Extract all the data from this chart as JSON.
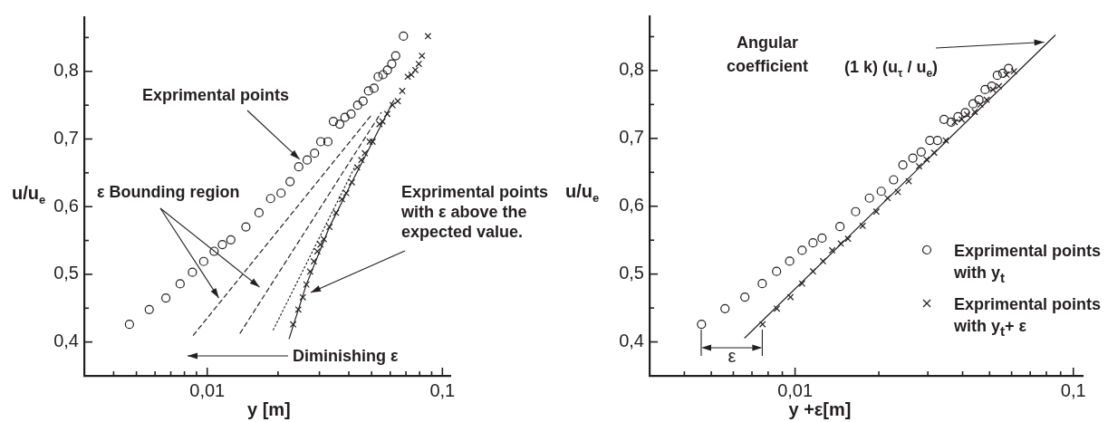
{
  "chart_data": [
    {
      "type": "scatter",
      "xlabel": "y [m]",
      "ylabel": "u/u$_{e}$",
      "log": "x",
      "legend": false,
      "xlim": [
        0.003,
        0.108
      ],
      "ylim": [
        0.35,
        0.88
      ],
      "xticks": [
        {
          "value": 0.004,
          "label": null
        },
        {
          "value": 0.005,
          "label": null
        },
        {
          "value": 0.006,
          "label": null
        },
        {
          "value": 0.007,
          "label": null
        },
        {
          "value": 0.008,
          "label": null
        },
        {
          "value": 0.009,
          "label": null
        },
        {
          "value": 0.01,
          "label": "0,01"
        },
        {
          "value": 0.02,
          "label": null
        },
        {
          "value": 0.03,
          "label": null
        },
        {
          "value": 0.04,
          "label": null
        },
        {
          "value": 0.05,
          "label": null
        },
        {
          "value": 0.06,
          "label": null
        },
        {
          "value": 0.07,
          "label": null
        },
        {
          "value": 0.08,
          "label": null
        },
        {
          "value": 0.09,
          "label": null
        },
        {
          "value": 0.1,
          "label": "0,1"
        }
      ],
      "yticks": [
        {
          "value": 0.4,
          "label": "0,4"
        },
        {
          "value": 0.45,
          "label": null
        },
        {
          "value": 0.5,
          "label": "0,5"
        },
        {
          "value": 0.55,
          "label": null
        },
        {
          "value": 0.6,
          "label": "0,6"
        },
        {
          "value": 0.65,
          "label": null
        },
        {
          "value": 0.7,
          "label": "0,7"
        },
        {
          "value": 0.75,
          "label": null
        },
        {
          "value": 0.8,
          "label": "0,8"
        },
        {
          "value": 0.85,
          "label": null
        }
      ],
      "series": [
        {
          "type": "scatter",
          "marker": "circle",
          "color": "#231f20",
          "x": [
            0.00467,
            0.00567,
            0.00667,
            0.00767,
            0.00865,
            0.00966,
            0.0107,
            0.0116,
            0.0126,
            0.0146,
            0.0166,
            0.0186,
            0.0206,
            0.0225,
            0.0245,
            0.0266,
            0.0286,
            0.0304,
            0.0326,
            0.0344,
            0.0366,
            0.0385,
            0.0409,
            0.0436,
            0.046,
            0.0485,
            0.0512,
            0.0533,
            0.0559,
            0.0584,
            0.0609,
            0.0633,
            0.0683
          ],
          "values": [
            0.426,
            0.448,
            0.465,
            0.486,
            0.503,
            0.519,
            0.534,
            0.544,
            0.551,
            0.57,
            0.591,
            0.612,
            0.62,
            0.637,
            0.659,
            0.669,
            0.679,
            0.696,
            0.696,
            0.726,
            0.722,
            0.732,
            0.737,
            0.75,
            0.756,
            0.771,
            0.775,
            0.792,
            0.795,
            0.802,
            0.811,
            0.823,
            0.852
          ]
        },
        {
          "type": "scatter",
          "marker": "cross",
          "color": "#231f20",
          "x": [
            0.0232,
            0.0244,
            0.0255,
            0.0264,
            0.0274,
            0.0284,
            0.0294,
            0.0303,
            0.0313,
            0.0331,
            0.0353,
            0.0374,
            0.039,
            0.0412,
            0.0434,
            0.0452,
            0.0468,
            0.0491,
            0.0505,
            0.054,
            0.0556,
            0.0583,
            0.0614,
            0.0646,
            0.0675,
            0.0712,
            0.0738,
            0.0767,
            0.0794,
            0.0818,
            0.0868
          ],
          "values": [
            0.426,
            0.448,
            0.466,
            0.485,
            0.504,
            0.519,
            0.534,
            0.544,
            0.552,
            0.57,
            0.591,
            0.611,
            0.62,
            0.636,
            0.658,
            0.669,
            0.679,
            0.696,
            0.696,
            0.722,
            0.726,
            0.737,
            0.75,
            0.756,
            0.771,
            0.792,
            0.795,
            0.802,
            0.811,
            0.823,
            0.852
          ]
        },
        {
          "type": "line",
          "line_style": "dashed",
          "color": "#231f20",
          "x": [
            0.00873,
            0.0495
          ],
          "values": [
            0.41,
            0.734
          ]
        },
        {
          "type": "line",
          "line_style": "dashed",
          "color": "#231f20",
          "x": [
            0.0138,
            0.0549
          ],
          "values": [
            0.413,
            0.739
          ]
        },
        {
          "type": "line",
          "line_style": "dotted",
          "color": "#231f20",
          "x": [
            0.0191,
            0.0427
          ],
          "values": [
            0.418,
            0.661
          ]
        },
        {
          "type": "line",
          "line_style": "solid",
          "color": "#231f20",
          "x": [
            0.0223,
            0.0264,
            0.0331,
            0.0412,
            0.0505,
            0.062
          ],
          "values": [
            0.405,
            0.485,
            0.57,
            0.636,
            0.696,
            0.757
          ]
        }
      ],
      "annotations": [
        {
          "text": "Exprimental points",
          "x": 0.0247,
          "y": 0.67
        },
        {
          "text": "ε Bounding region",
          "x": 0.0112,
          "y": 0.465
        },
        "Exprimental points\nwith ε above the\nexpected value.",
        "Diminishing ε"
      ]
    },
    {
      "type": "scatter",
      "xlabel": "y +ε[m]",
      "ylabel": "u/u$_{e}$",
      "log": "x",
      "legend": "bottom right",
      "xlim": [
        0.003,
        0.108
      ],
      "ylim": [
        0.35,
        0.88
      ],
      "xticks": [
        {
          "value": 0.004,
          "label": null
        },
        {
          "value": 0.005,
          "label": null
        },
        {
          "value": 0.006,
          "label": null
        },
        {
          "value": 0.007,
          "label": null
        },
        {
          "value": 0.008,
          "label": null
        },
        {
          "value": 0.009,
          "label": null
        },
        {
          "value": 0.01,
          "label": "0,01"
        },
        {
          "value": 0.02,
          "label": null
        },
        {
          "value": 0.03,
          "label": null
        },
        {
          "value": 0.04,
          "label": null
        },
        {
          "value": 0.05,
          "label": null
        },
        {
          "value": 0.06,
          "label": null
        },
        {
          "value": 0.07,
          "label": null
        },
        {
          "value": 0.08,
          "label": null
        },
        {
          "value": 0.09,
          "label": null
        },
        {
          "value": 0.1,
          "label": "0,1"
        }
      ],
      "yticks": [
        {
          "value": 0.4,
          "label": "0,4"
        },
        {
          "value": 0.45,
          "label": null
        },
        {
          "value": 0.5,
          "label": "0,5"
        },
        {
          "value": 0.55,
          "label": null
        },
        {
          "value": 0.6,
          "label": "0,6"
        },
        {
          "value": 0.65,
          "label": null
        },
        {
          "value": 0.7,
          "label": "0,7"
        },
        {
          "value": 0.75,
          "label": null
        },
        {
          "value": 0.8,
          "label": "0,8"
        },
        {
          "value": 0.85,
          "label": null
        }
      ],
      "series": [
        {
          "type": "scatter",
          "name": "Exprimental points\nwith y$_{t}$",
          "marker": "circle",
          "color": "#231f20",
          "x": [
            0.00461,
            0.0056,
            0.0066,
            0.00762,
            0.00858,
            0.00956,
            0.0106,
            0.0116,
            0.0125,
            0.0145,
            0.0165,
            0.0185,
            0.0204,
            0.0226,
            0.0244,
            0.0265,
            0.0284,
            0.0305,
            0.0325,
            0.0343,
            0.0364,
            0.0385,
            0.0409,
            0.0436,
            0.0458,
            0.0482,
            0.0509,
            0.0533,
            0.0558,
            0.0585
          ],
          "values": [
            0.426,
            0.449,
            0.466,
            0.486,
            0.504,
            0.519,
            0.535,
            0.546,
            0.553,
            0.57,
            0.592,
            0.612,
            0.622,
            0.639,
            0.661,
            0.671,
            0.68,
            0.697,
            0.697,
            0.728,
            0.724,
            0.732,
            0.738,
            0.751,
            0.757,
            0.772,
            0.777,
            0.793,
            0.796,
            0.803
          ]
        },
        {
          "type": "scatter",
          "name": "Exprimental points\nwith y$_{t}$+ ε",
          "marker": "cross",
          "color": "#231f20",
          "x": [
            0.00764,
            0.0086,
            0.00963,
            0.0106,
            0.0116,
            0.0126,
            0.0136,
            0.0146,
            0.0155,
            0.0175,
            0.0196,
            0.0215,
            0.0234,
            0.0256,
            0.0279,
            0.0297,
            0.0316,
            0.0348,
            0.0375,
            0.0397,
            0.0415,
            0.0442,
            0.0464,
            0.0488,
            0.0514,
            0.054,
            0.0575,
            0.0612
          ],
          "values": [
            0.426,
            0.449,
            0.466,
            0.486,
            0.504,
            0.519,
            0.535,
            0.545,
            0.552,
            0.571,
            0.592,
            0.612,
            0.621,
            0.637,
            0.659,
            0.669,
            0.679,
            0.697,
            0.724,
            0.728,
            0.735,
            0.739,
            0.75,
            0.757,
            0.772,
            0.777,
            0.794,
            0.799
          ]
        },
        {
          "type": "line",
          "line_style": "solid",
          "color": "#231f20",
          "x": [
            0.0066,
            0.086
          ],
          "values": [
            0.406,
            0.852
          ]
        }
      ],
      "annotations": [
        "Angular\ncoefficient",
        {
          "text": "(1 k) (u$_{τ}$ / u$_{e}$)",
          "x": 0.0786,
          "y": 0.842
        },
        "ε"
      ]
    }
  ]
}
